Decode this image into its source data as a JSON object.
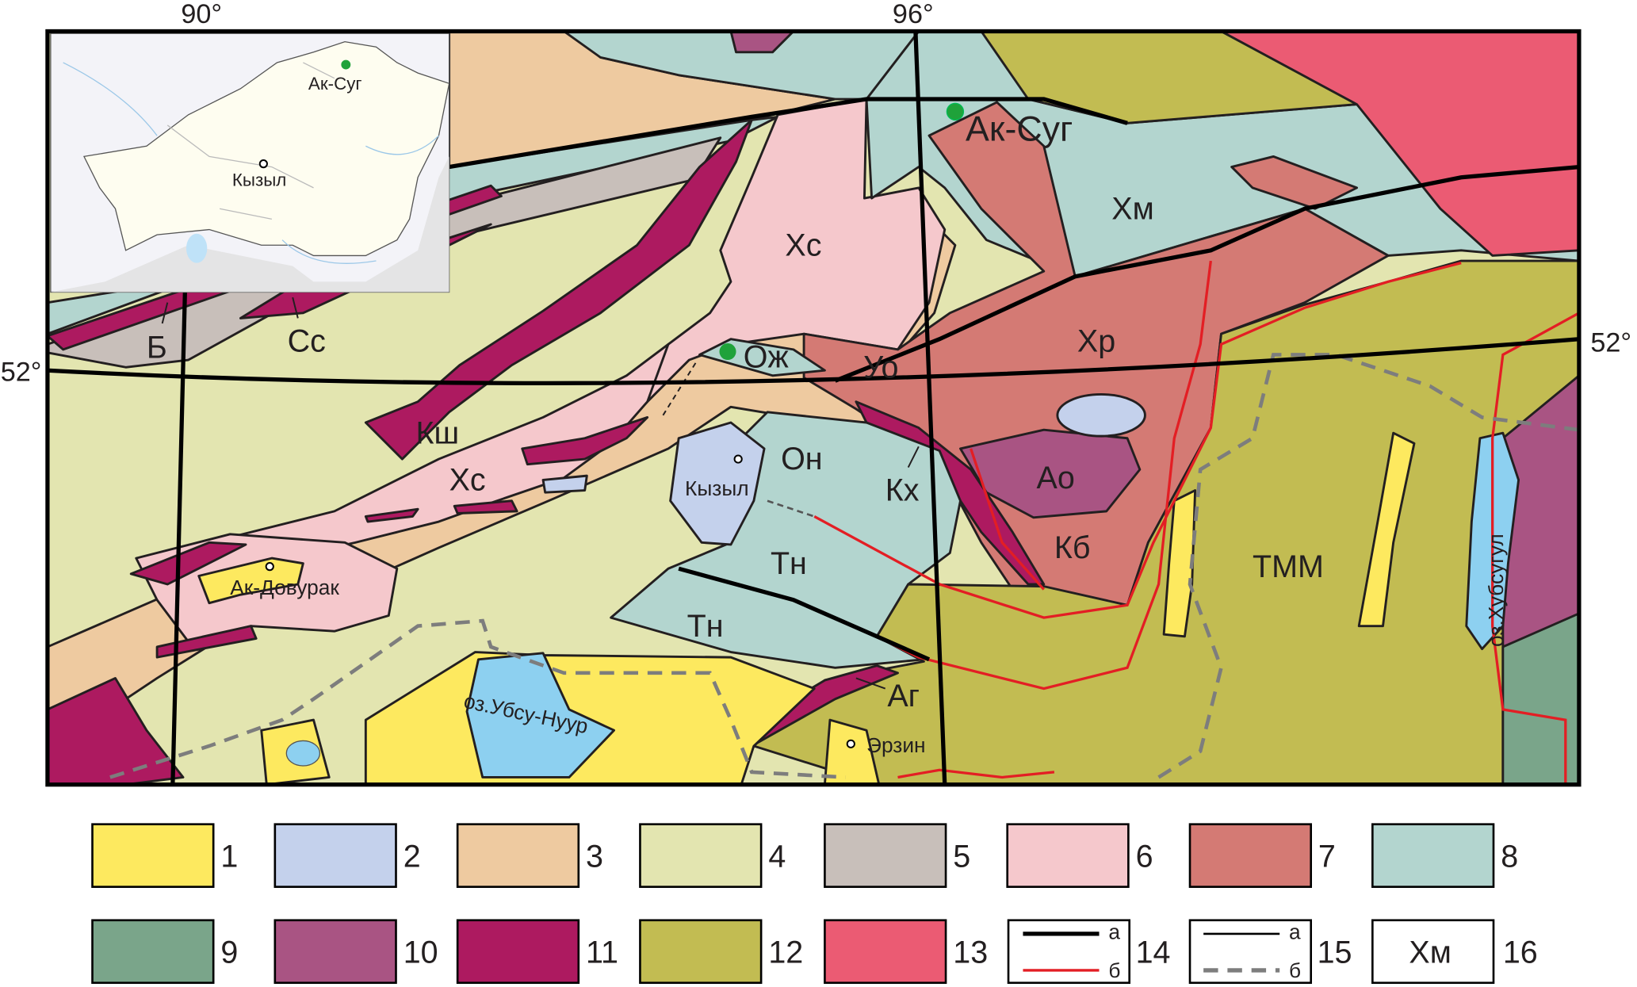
{
  "coordinates": {
    "lon_90": "90°",
    "lon_96": "96°",
    "lat_52_left": "52°",
    "lat_52_right": "52°"
  },
  "inset": {
    "ak_sug": "Ак-Суг",
    "kyzyl": "Кызыл"
  },
  "map_labels": {
    "ak_sug": "Ак-Суг",
    "khm": "Хм",
    "khs_north": "Хс",
    "khr": "Хр",
    "uo": "Уо",
    "ozh": "Ож",
    "b": "Б",
    "ss": "Сс",
    "ksh": "Кш",
    "khs_south": "Хс",
    "on": "Он",
    "kyzyl": "Кызыл",
    "ao": "Ао",
    "kkh": "Кх",
    "kb": "Кб",
    "tn_1": "Тн",
    "tn_2": "Тн",
    "tmm": "ТММ",
    "khubsugul": "оз.Хубсугул",
    "ak_dovurak": "Ак-Довурак",
    "ubsu_nuur": "оз.Убсу-Нуур",
    "ag": "Аг",
    "erzin": "Эрзин"
  },
  "colors": {
    "u1": "#fde95f",
    "u2": "#c4d1ec",
    "u3": "#eecaa0",
    "u4": "#e3e5b0",
    "u5": "#c8bfba",
    "u6": "#f5c8cc",
    "u7": "#d47a74",
    "u8": "#b3d5cf",
    "u9": "#7aa58a",
    "u10": "#a95483",
    "u11": "#ad1a60",
    "u12": "#c2bc52",
    "u13": "#eb5b73",
    "lake": "#8dd0f0",
    "boundary_red": "#e31e24",
    "dashed_gray": "#7d7d7d",
    "point_green": "#1fa23a"
  },
  "legend": {
    "items": [
      {
        "num": "1",
        "color": "#fde95f"
      },
      {
        "num": "2",
        "color": "#c4d1ec"
      },
      {
        "num": "3",
        "color": "#eecaa0"
      },
      {
        "num": "4",
        "color": "#e3e5b0"
      },
      {
        "num": "5",
        "color": "#c8bfba"
      },
      {
        "num": "6",
        "color": "#f5c8cc"
      },
      {
        "num": "7",
        "color": "#d47a74"
      },
      {
        "num": "8",
        "color": "#b3d5cf"
      },
      {
        "num": "9",
        "color": "#7aa58a"
      },
      {
        "num": "10",
        "color": "#a95483"
      },
      {
        "num": "11",
        "color": "#ad1a60"
      },
      {
        "num": "12",
        "color": "#c2bc52"
      },
      {
        "num": "13",
        "color": "#eb5b73"
      }
    ],
    "line14": {
      "num": "14",
      "a": "а",
      "b": "б"
    },
    "line15": {
      "num": "15",
      "a": "а",
      "b": "б"
    },
    "abbr16": {
      "num": "16",
      "sample": "Хм"
    }
  }
}
